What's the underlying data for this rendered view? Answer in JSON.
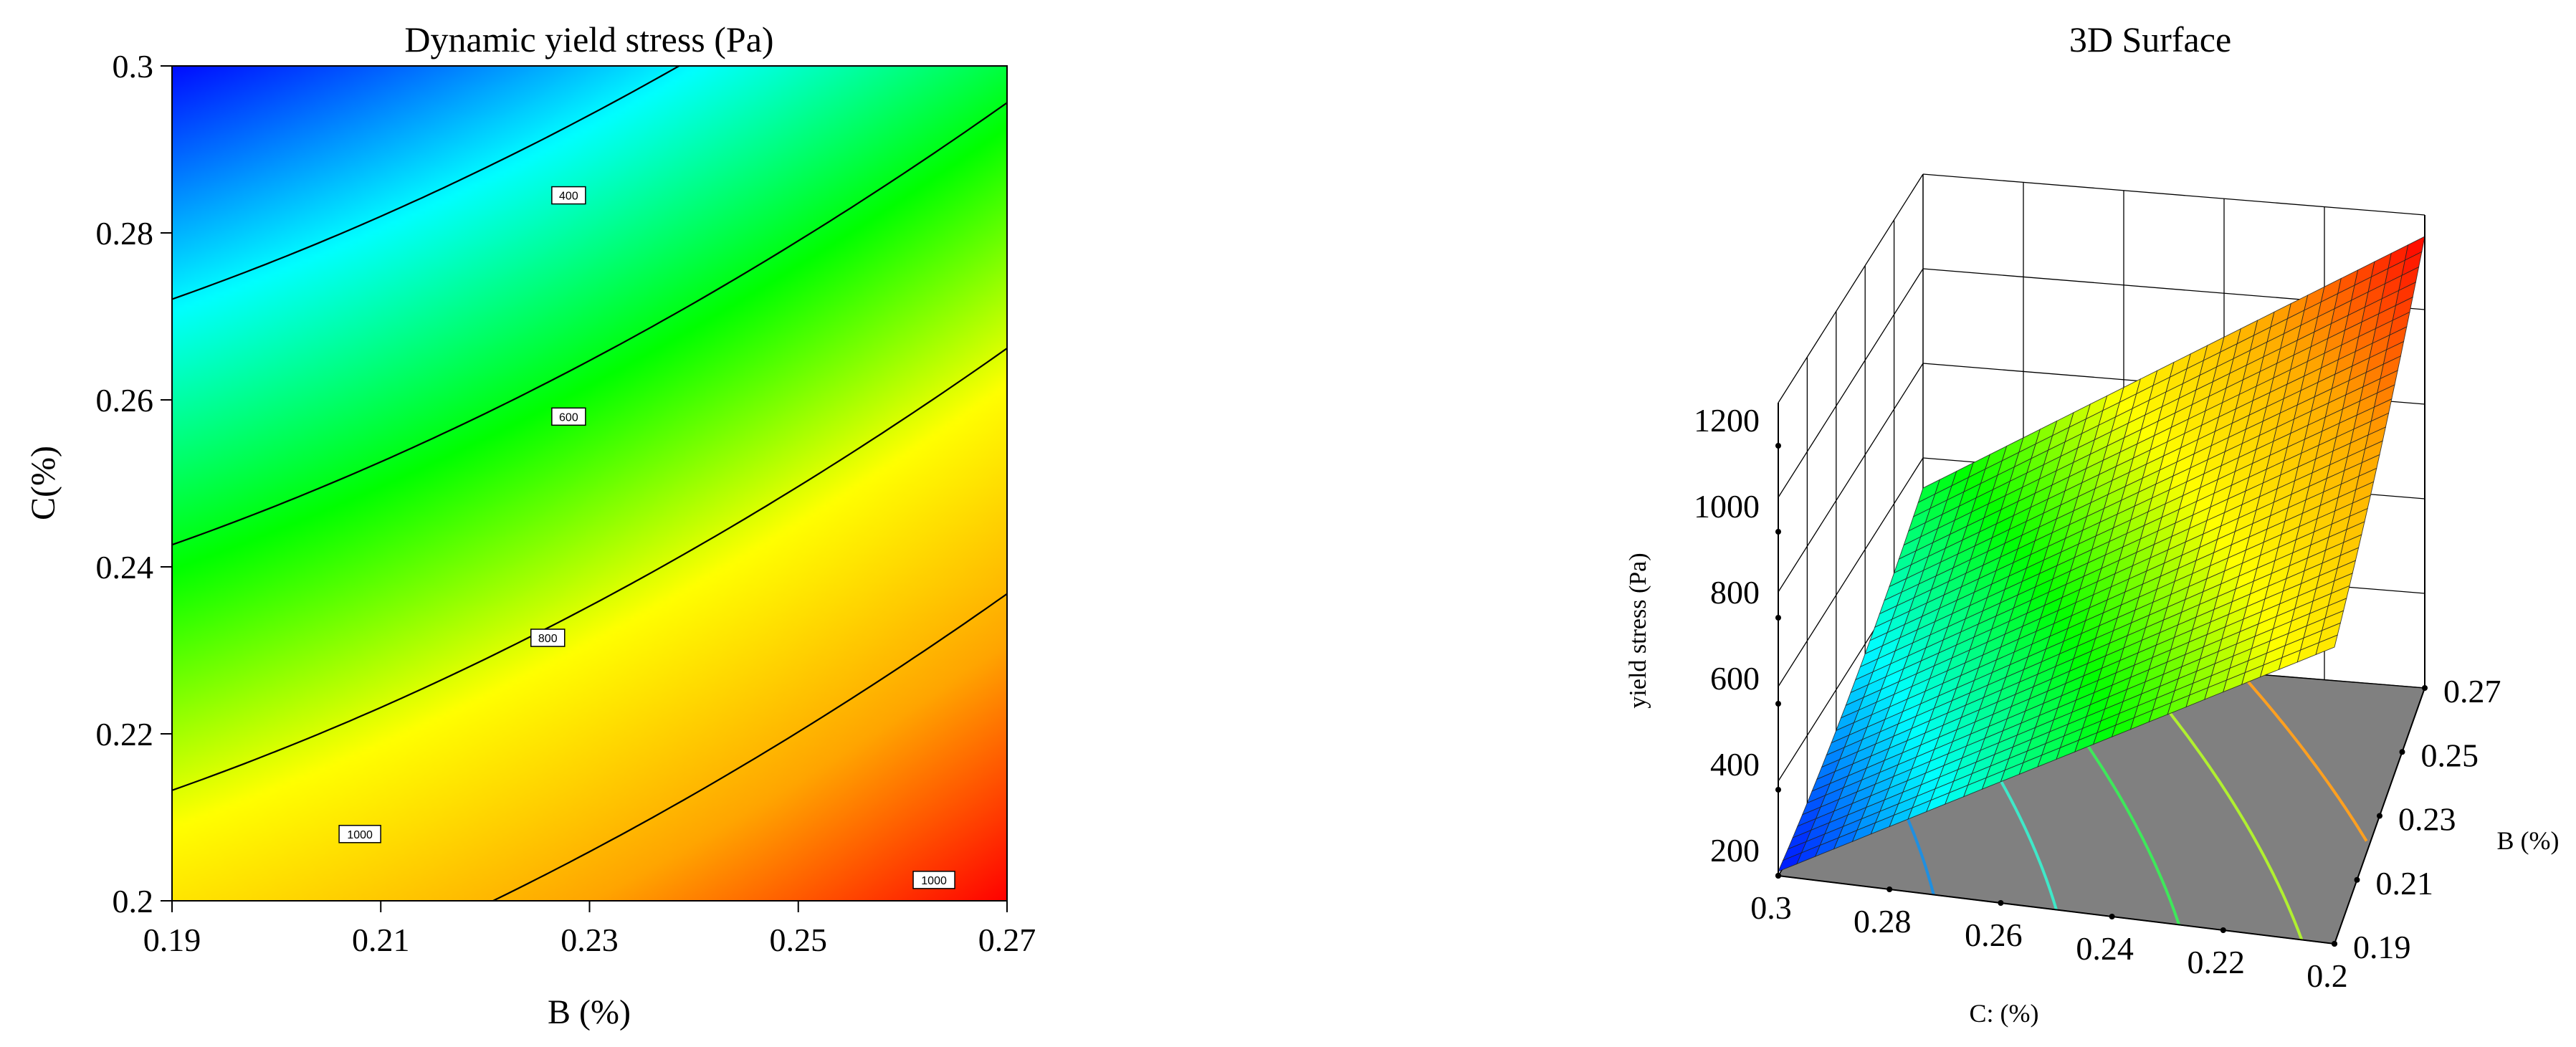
{
  "chart_data": [
    {
      "type": "heatmap",
      "title": "Dynamic yield stress (Pa)",
      "xlabel": "B (%)",
      "ylabel": "C(%)",
      "xlim": [
        0.19,
        0.27
      ],
      "ylim": [
        0.2,
        0.3
      ],
      "x_ticks": [
        "0.19",
        "0.21",
        "0.23",
        "0.25",
        "0.27"
      ],
      "y_ticks": [
        "0.2",
        "0.22",
        "0.24",
        "0.26",
        "0.28",
        "0.3"
      ],
      "color_scale": [
        "#ff0000",
        "#ffa500",
        "#ffff00",
        "#00ff00",
        "#00ffff",
        "#0000ff"
      ],
      "value_range": [
        200,
        1250
      ],
      "contours": [
        {
          "level": 400,
          "label": "400",
          "label_at": [
            0.228,
            0.2845
          ]
        },
        {
          "level": 600,
          "label": "600",
          "label_at": [
            0.228,
            0.258
          ]
        },
        {
          "level": 800,
          "label": "800",
          "label_at": [
            0.226,
            0.2315
          ]
        },
        {
          "level": 1000,
          "label": "1000",
          "label_at": [
            0.208,
            0.208
          ]
        },
        {
          "level": 1000,
          "label": "1000",
          "label_at": [
            0.263,
            0.2025
          ]
        }
      ]
    },
    {
      "type": "surface3d",
      "title": "3D Surface",
      "xlabel": "C:  (%)",
      "ylabel": "B (%)",
      "zlabel": "yield stress (Pa)",
      "c_ticks": [
        "0.3",
        "0.28",
        "0.26",
        "0.24",
        "0.22",
        "0.2"
      ],
      "b_ticks": [
        "0.19",
        "0.21",
        "0.23",
        "0.25",
        "0.27"
      ],
      "z_ticks": [
        "200",
        "400",
        "600",
        "800",
        "1000",
        "1200"
      ],
      "zlim": [
        200,
        1300
      ],
      "floor_color": "#808080",
      "floor_contour_colors": [
        "#1f8fe0",
        "#3fe8c8",
        "#3ee85a",
        "#b0f030",
        "#ffa020"
      ]
    }
  ]
}
